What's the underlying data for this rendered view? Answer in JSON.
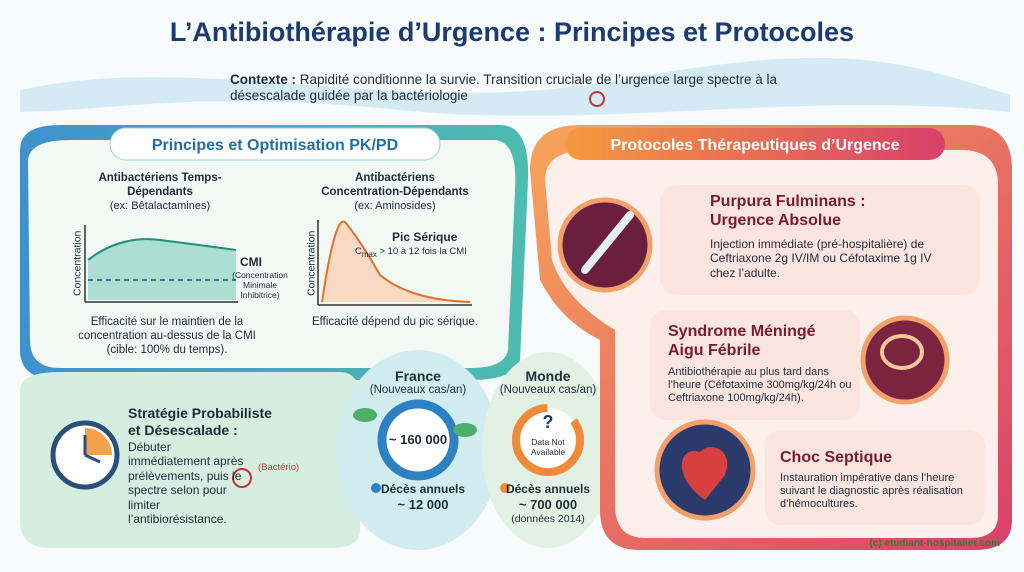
{
  "title": "L’Antibiothérapie d’Urgence : Principes et Protocoles",
  "context": {
    "label": "Contexte :",
    "text": "Rapidité conditionne la survie. Transition cruciale de l’urgence large spectre à la désescalade guidée par la bactériologie"
  },
  "left": {
    "title": "Principes et Optimisation PK/PD",
    "time_dependent": {
      "title": "Antibactériens Temps-Dépendants",
      "example": "(ex: Bêtalactamines)",
      "y_label": "Concentration",
      "cmi": "CMI",
      "cmi_full": "(Concentration Minimale Inhibitrice)",
      "caption": "Efficacité sur le maintien de la concentration au-dessus de la CMI (cible: 100% du temps)."
    },
    "concentration_dependent": {
      "title": "Antibactériens Concentration-Dépendants",
      "example": "(ex: Aminosides)",
      "y_label": "Concentration",
      "peak": "Pic Sérique",
      "peak_symbol": "C",
      "peak_sub": "max",
      "peak_note": "> 10 à 12 fois la CMI",
      "caption": "Efficacité dépend du pic sérique."
    },
    "strategy": {
      "title": "Stratégie Probabiliste et Désescalade :",
      "text": "Débuter immédiatement après prélèvements, puis le spectre selon pour limiter l’antibiorésistance.",
      "tag": "(Bactério)"
    }
  },
  "france": {
    "title": "France",
    "subtitle": "(Nouveaux cas/an)",
    "cases": "~ 160 000",
    "deaths_label": "Décès annuels",
    "deaths": "~ 12 000"
  },
  "world": {
    "title": "Monde",
    "subtitle": "(Nouveaux cas/an)",
    "unknown": "?",
    "unknown_text": "Data Not Available",
    "deaths_label": "Décès annuels",
    "deaths": "~ 700 000",
    "note": "(données 2014)"
  },
  "right": {
    "title": "Protocoles Thérapeutiques d’Urgence",
    "protocols": [
      {
        "title": "Purpura Fulminans : Urgence Absolue",
        "text": "Injection immédiate (pré-hospitalière) de Ceftriaxone 2g IV/IM ou Céfotaxime 1g IV chez l’adulte."
      },
      {
        "title": "Syndrome Méningé Aigu Fébrile",
        "text": "Antibiothérapie au plus tard dans l’heure (Céfotaxime 300mg/kg/24h ou Ceftriaxone 100mg/kg/24h)."
      },
      {
        "title": "Choc Septique",
        "text": "Instauration impérative dans l’heure suivant le diagnostic après réalisation d’hémocultures."
      }
    ]
  },
  "credit": "(c) etudiant-hospitalier.com"
}
